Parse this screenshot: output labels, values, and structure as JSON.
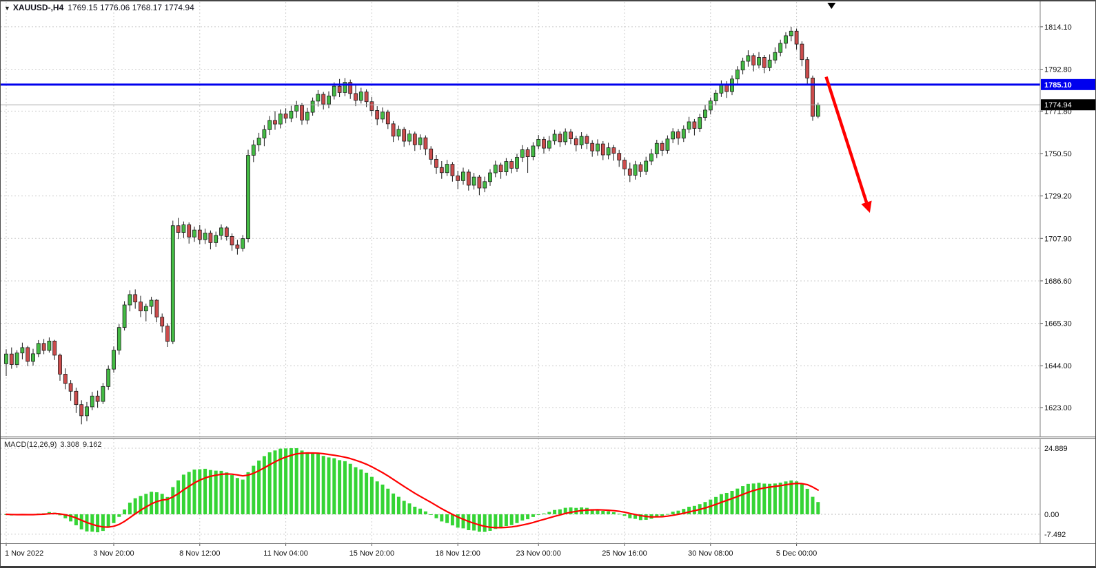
{
  "window": {
    "title_marker": "▼",
    "symbol_title": "XAUUSD-,H4",
    "ohlc": "1769.15 1776.06 1768.17 1774.94"
  },
  "price_axis": {
    "grid_labels": [
      "1814.10",
      "1792.80",
      "1771.80",
      "1750.50",
      "1729.20",
      "1707.90",
      "1686.60",
      "1665.30",
      "1644.00",
      "1623.00"
    ],
    "resistance_label": "1785.10",
    "current_label": "1774.94"
  },
  "time_axis": {
    "ticks": [
      {
        "label": "1 Nov 2022",
        "i": 0
      },
      {
        "label": "3 Nov 20:00",
        "i": 20
      },
      {
        "label": "8 Nov 12:00",
        "i": 36
      },
      {
        "label": "11 Nov 04:00",
        "i": 52
      },
      {
        "label": "15 Nov 20:00",
        "i": 68
      },
      {
        "label": "18 Nov 12:00",
        "i": 84
      },
      {
        "label": "23 Nov 00:00",
        "i": 99
      },
      {
        "label": "25 Nov 16:00",
        "i": 115
      },
      {
        "label": "30 Nov 08:00",
        "i": 131
      },
      {
        "label": "5 Dec 00:00",
        "i": 147
      }
    ]
  },
  "macd_panel": {
    "label": "MACD(12,26,9)",
    "value_main": "3.308",
    "value_signal": "9.162",
    "axis_max": "24.889",
    "axis_zero": "0.00",
    "axis_min": "-7.492"
  },
  "chart_data": {
    "type": "candlestick",
    "symbol": "XAUUSD",
    "timeframe": "H4",
    "title": "XAUUSD-,H4 1769.15 1776.06 1768.17 1774.94",
    "price_range_labels": [
      1814.1,
      1623.0
    ],
    "grid_step": 21.3,
    "candles": [
      [
        1645.0,
        1652.3,
        1638.9,
        1649.9
      ],
      [
        1649.9,
        1653.2,
        1642.5,
        1644.6
      ],
      [
        1644.6,
        1651.8,
        1643.0,
        1650.4
      ],
      [
        1650.4,
        1655.6,
        1647.2,
        1653.1
      ],
      [
        1653.1,
        1654.0,
        1643.8,
        1646.2
      ],
      [
        1646.2,
        1652.5,
        1644.1,
        1650.0
      ],
      [
        1650.0,
        1656.9,
        1648.3,
        1655.2
      ],
      [
        1655.2,
        1657.4,
        1649.8,
        1651.7
      ],
      [
        1651.7,
        1658.2,
        1650.6,
        1656.4
      ],
      [
        1656.4,
        1657.0,
        1646.9,
        1649.3
      ],
      [
        1649.3,
        1650.1,
        1636.5,
        1639.8
      ],
      [
        1639.8,
        1642.7,
        1632.2,
        1635.1
      ],
      [
        1635.1,
        1636.8,
        1626.4,
        1631.2
      ],
      [
        1631.2,
        1633.0,
        1620.3,
        1624.5
      ],
      [
        1624.5,
        1626.7,
        1614.6,
        1618.9
      ],
      [
        1618.9,
        1625.8,
        1616.2,
        1623.4
      ],
      [
        1623.4,
        1630.9,
        1621.7,
        1628.8
      ],
      [
        1628.8,
        1631.5,
        1622.9,
        1626.1
      ],
      [
        1626.1,
        1635.4,
        1624.8,
        1633.6
      ],
      [
        1633.6,
        1644.2,
        1631.9,
        1642.3
      ],
      [
        1642.3,
        1653.7,
        1640.5,
        1651.8
      ],
      [
        1651.8,
        1664.9,
        1649.6,
        1663.2
      ],
      [
        1663.2,
        1676.4,
        1661.7,
        1674.5
      ],
      [
        1674.5,
        1681.9,
        1671.3,
        1679.7
      ],
      [
        1679.7,
        1682.3,
        1672.6,
        1676.0
      ],
      [
        1676.0,
        1679.1,
        1668.4,
        1671.5
      ],
      [
        1671.5,
        1675.2,
        1666.3,
        1673.8
      ],
      [
        1673.8,
        1678.6,
        1669.9,
        1676.9
      ],
      [
        1676.9,
        1677.5,
        1665.8,
        1668.4
      ],
      [
        1668.4,
        1670.2,
        1660.7,
        1663.9
      ],
      [
        1663.9,
        1665.3,
        1653.4,
        1656.2
      ],
      [
        1656.2,
        1716.8,
        1654.9,
        1714.3
      ],
      [
        1714.3,
        1718.2,
        1707.6,
        1710.9
      ],
      [
        1710.9,
        1716.4,
        1708.1,
        1714.7
      ],
      [
        1714.7,
        1715.9,
        1705.3,
        1708.6
      ],
      [
        1708.6,
        1713.8,
        1706.2,
        1712.1
      ],
      [
        1712.1,
        1714.6,
        1704.9,
        1707.3
      ],
      [
        1707.3,
        1712.8,
        1705.1,
        1710.6
      ],
      [
        1710.6,
        1711.9,
        1702.4,
        1705.8
      ],
      [
        1705.8,
        1711.3,
        1703.6,
        1709.4
      ],
      [
        1709.4,
        1714.9,
        1707.2,
        1713.2
      ],
      [
        1713.2,
        1714.1,
        1706.8,
        1708.9
      ],
      [
        1708.9,
        1710.4,
        1701.7,
        1704.6
      ],
      [
        1704.6,
        1707.2,
        1699.8,
        1702.9
      ],
      [
        1702.9,
        1709.6,
        1701.3,
        1707.8
      ],
      [
        1707.8,
        1752.4,
        1705.9,
        1749.6
      ],
      [
        1749.6,
        1757.3,
        1746.2,
        1754.8
      ],
      [
        1754.8,
        1760.9,
        1751.6,
        1758.3
      ],
      [
        1758.3,
        1764.7,
        1754.2,
        1762.5
      ],
      [
        1762.5,
        1769.3,
        1759.8,
        1767.1
      ],
      [
        1767.1,
        1771.8,
        1762.4,
        1765.3
      ],
      [
        1765.3,
        1772.6,
        1763.1,
        1770.4
      ],
      [
        1770.4,
        1773.2,
        1765.7,
        1768.2
      ],
      [
        1768.2,
        1774.5,
        1766.3,
        1771.8
      ],
      [
        1771.8,
        1776.9,
        1768.4,
        1774.6
      ],
      [
        1774.6,
        1775.8,
        1764.9,
        1767.3
      ],
      [
        1767.3,
        1773.4,
        1765.2,
        1771.2
      ],
      [
        1771.2,
        1778.6,
        1769.5,
        1776.8
      ],
      [
        1776.8,
        1782.3,
        1774.1,
        1780.2
      ],
      [
        1780.2,
        1781.4,
        1772.6,
        1775.3
      ],
      [
        1775.3,
        1781.7,
        1773.2,
        1779.4
      ],
      [
        1779.4,
        1786.2,
        1777.6,
        1784.3
      ],
      [
        1784.3,
        1787.9,
        1778.8,
        1781.1
      ],
      [
        1781.1,
        1788.4,
        1779.3,
        1786.2
      ],
      [
        1786.2,
        1787.6,
        1777.9,
        1780.6
      ],
      [
        1780.6,
        1784.8,
        1774.3,
        1777.2
      ],
      [
        1777.2,
        1783.5,
        1775.6,
        1781.4
      ],
      [
        1781.4,
        1782.7,
        1773.8,
        1776.5
      ],
      [
        1776.5,
        1778.9,
        1769.4,
        1772.1
      ],
      [
        1772.1,
        1774.3,
        1764.7,
        1767.8
      ],
      [
        1767.8,
        1773.6,
        1765.9,
        1771.3
      ],
      [
        1771.3,
        1772.4,
        1762.8,
        1765.4
      ],
      [
        1765.4,
        1766.8,
        1756.3,
        1759.2
      ],
      [
        1759.2,
        1764.5,
        1757.1,
        1762.6
      ],
      [
        1762.6,
        1763.8,
        1753.9,
        1756.7
      ],
      [
        1756.7,
        1762.2,
        1754.6,
        1760.3
      ],
      [
        1760.3,
        1761.5,
        1751.8,
        1754.9
      ],
      [
        1754.9,
        1760.1,
        1752.3,
        1758.4
      ],
      [
        1758.4,
        1759.6,
        1749.7,
        1752.8
      ],
      [
        1752.8,
        1754.2,
        1744.9,
        1747.6
      ],
      [
        1747.6,
        1749.8,
        1740.2,
        1743.5
      ],
      [
        1743.5,
        1746.7,
        1737.8,
        1740.9
      ],
      [
        1740.9,
        1747.3,
        1739.2,
        1745.1
      ],
      [
        1745.1,
        1746.2,
        1736.4,
        1739.3
      ],
      [
        1739.3,
        1741.8,
        1732.6,
        1736.9
      ],
      [
        1736.9,
        1743.4,
        1734.8,
        1741.2
      ],
      [
        1741.2,
        1742.5,
        1731.9,
        1734.6
      ],
      [
        1734.6,
        1740.8,
        1732.4,
        1738.7
      ],
      [
        1738.7,
        1739.8,
        1729.6,
        1733.2
      ],
      [
        1733.2,
        1738.9,
        1731.1,
        1736.4
      ],
      [
        1736.4,
        1742.6,
        1734.3,
        1740.8
      ],
      [
        1740.8,
        1746.9,
        1738.6,
        1744.7
      ],
      [
        1744.7,
        1745.9,
        1737.8,
        1741.3
      ],
      [
        1741.3,
        1748.2,
        1739.4,
        1746.5
      ],
      [
        1746.5,
        1747.8,
        1740.6,
        1743.1
      ],
      [
        1743.1,
        1750.4,
        1741.2,
        1748.6
      ],
      [
        1748.6,
        1754.7,
        1746.3,
        1752.4
      ],
      [
        1752.4,
        1753.6,
        1740.8,
        1748.9
      ],
      [
        1748.9,
        1756.2,
        1747.1,
        1754.3
      ],
      [
        1754.3,
        1759.8,
        1752.6,
        1757.6
      ],
      [
        1757.6,
        1758.9,
        1750.4,
        1753.2
      ],
      [
        1753.2,
        1759.3,
        1751.7,
        1756.8
      ],
      [
        1756.8,
        1762.4,
        1754.9,
        1760.2
      ],
      [
        1760.2,
        1761.6,
        1753.8,
        1756.4
      ],
      [
        1756.4,
        1763.1,
        1754.7,
        1761.3
      ],
      [
        1761.3,
        1762.8,
        1755.2,
        1757.9
      ],
      [
        1757.9,
        1759.4,
        1751.6,
        1754.8
      ],
      [
        1754.8,
        1761.2,
        1752.9,
        1759.1
      ],
      [
        1759.1,
        1760.3,
        1752.7,
        1755.6
      ],
      [
        1755.6,
        1757.2,
        1748.9,
        1751.8
      ],
      [
        1751.8,
        1757.6,
        1749.4,
        1755.3
      ],
      [
        1755.3,
        1756.7,
        1747.2,
        1749.8
      ],
      [
        1749.8,
        1755.9,
        1747.6,
        1753.4
      ],
      [
        1753.4,
        1754.8,
        1746.9,
        1750.6
      ],
      [
        1750.6,
        1752.3,
        1743.8,
        1747.2
      ],
      [
        1747.2,
        1748.6,
        1739.4,
        1742.8
      ],
      [
        1742.8,
        1745.9,
        1736.2,
        1739.6
      ],
      [
        1739.6,
        1746.8,
        1737.4,
        1744.9
      ],
      [
        1744.9,
        1746.3,
        1738.7,
        1741.5
      ],
      [
        1741.5,
        1748.9,
        1739.8,
        1746.7
      ],
      [
        1746.7,
        1752.8,
        1744.6,
        1750.3
      ],
      [
        1750.3,
        1757.4,
        1748.2,
        1755.6
      ],
      [
        1755.6,
        1756.9,
        1749.3,
        1752.1
      ],
      [
        1752.1,
        1759.6,
        1750.4,
        1757.8
      ],
      [
        1757.8,
        1763.2,
        1755.7,
        1761.4
      ],
      [
        1761.4,
        1762.8,
        1754.9,
        1758.2
      ],
      [
        1758.2,
        1764.6,
        1756.3,
        1762.7
      ],
      [
        1762.7,
        1768.9,
        1760.8,
        1766.4
      ],
      [
        1766.4,
        1767.8,
        1759.6,
        1763.1
      ],
      [
        1763.1,
        1770.4,
        1761.2,
        1768.6
      ],
      [
        1768.6,
        1774.8,
        1766.9,
        1772.3
      ],
      [
        1772.3,
        1778.6,
        1770.1,
        1776.9
      ],
      [
        1776.9,
        1782.4,
        1774.6,
        1780.8
      ],
      [
        1780.8,
        1787.2,
        1778.9,
        1785.3
      ],
      [
        1785.3,
        1786.8,
        1778.4,
        1781.6
      ],
      [
        1781.6,
        1789.7,
        1779.8,
        1787.9
      ],
      [
        1787.9,
        1794.3,
        1785.6,
        1792.4
      ],
      [
        1792.4,
        1798.6,
        1790.2,
        1796.8
      ],
      [
        1796.8,
        1802.3,
        1794.1,
        1799.6
      ],
      [
        1799.6,
        1800.8,
        1791.7,
        1794.9
      ],
      [
        1794.9,
        1801.4,
        1793.2,
        1798.7
      ],
      [
        1798.7,
        1799.9,
        1790.8,
        1793.6
      ],
      [
        1793.6,
        1800.2,
        1791.9,
        1797.4
      ],
      [
        1797.4,
        1803.8,
        1795.6,
        1801.2
      ],
      [
        1801.2,
        1807.6,
        1799.3,
        1805.8
      ],
      [
        1805.8,
        1811.4,
        1803.2,
        1809.6
      ],
      [
        1809.6,
        1814.1,
        1806.8,
        1811.9
      ],
      [
        1811.9,
        1813.2,
        1802.6,
        1805.4
      ],
      [
        1805.4,
        1806.8,
        1794.3,
        1797.6
      ],
      [
        1797.6,
        1798.9,
        1785.2,
        1788.4
      ],
      [
        1788.4,
        1789.6,
        1766.9,
        1769.15
      ],
      [
        1769.15,
        1776.06,
        1768.17,
        1774.94
      ]
    ],
    "overlays": [
      {
        "type": "hline",
        "name": "resistance-line",
        "price": 1785.1,
        "color": "#0000ee"
      },
      {
        "type": "current-price-line",
        "price": 1774.94,
        "color": "#a8a8a8"
      },
      {
        "type": "trend-arrow",
        "from_i": 152.5,
        "from_price": 1789.0,
        "to_i": 160.0,
        "to_price": 1726.0,
        "color": "#ff0000"
      },
      {
        "type": "marker-down",
        "i": 153.5,
        "color": "#000000"
      }
    ],
    "indicator": {
      "type": "macd",
      "fast": 12,
      "slow": 26,
      "signal": 9,
      "last_main": 3.308,
      "last_signal": 9.162,
      "axis_max": 24.889,
      "axis_min": -7.492
    }
  },
  "colors": {
    "background": "#ffffff",
    "grid": "#cccccc",
    "panel_border": "#808080",
    "candle_up": "#44bb44",
    "candle_down": "#cc4c4c",
    "candle_border": "#1a1a1a",
    "wick": "#1a1a1a",
    "macd_bar": "#35d435",
    "macd_signal": "#ff0000",
    "resistance_line": "#0000ee",
    "resistance_label_bg": "#0000ee",
    "current_line": "#a8a8a8",
    "current_label_bg": "#000000",
    "arrow": "#ff0000",
    "axis_text": "#111111"
  }
}
